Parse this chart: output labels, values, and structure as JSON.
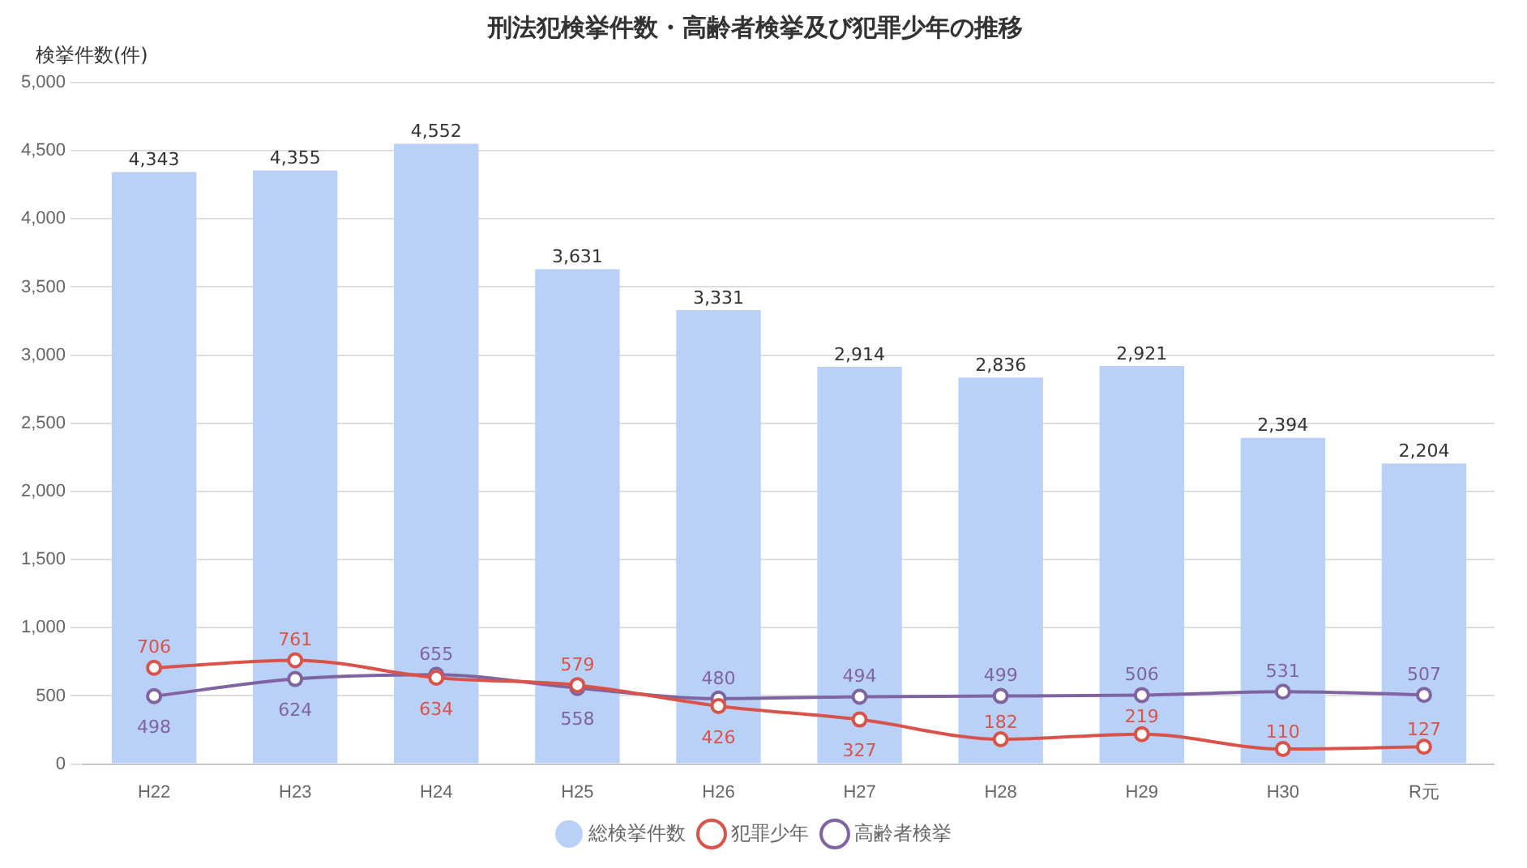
{
  "chart_data": {
    "type": "bar",
    "title": "刑法犯検挙件数・高齢者検挙及び犯罪少年の推移",
    "ylabel": "検挙件数(件)",
    "categories": [
      "H22",
      "H23",
      "H24",
      "H25",
      "H26",
      "H27",
      "H28",
      "H29",
      "H30",
      "R元"
    ],
    "series": [
      {
        "name": "総検挙件数",
        "color": "#b9d1f6",
        "values": [
          4343,
          4355,
          4552,
          3631,
          3331,
          2914,
          2836,
          2921,
          2394,
          2204
        ],
        "value_labels": [
          "4,343",
          "4,355",
          "4,552",
          "3,631",
          "3,331",
          "2,914",
          "2,836",
          "2,921",
          "2,394",
          "2,204"
        ]
      },
      {
        "name": "犯罪少年",
        "type": "line",
        "color": "#d9534a",
        "values": [
          706,
          761,
          634,
          579,
          426,
          327,
          182,
          219,
          110,
          127
        ],
        "value_labels": [
          "706",
          "761",
          "634",
          "579",
          "426",
          "327",
          "182",
          "219",
          "110",
          "127"
        ]
      },
      {
        "name": "高齢者検挙",
        "type": "line",
        "color": "#8064a2",
        "values": [
          498,
          624,
          655,
          558,
          480,
          494,
          499,
          506,
          531,
          507
        ],
        "value_labels": [
          "498",
          "624",
          "655",
          "558",
          "480",
          "494",
          "499",
          "506",
          "531",
          "507"
        ]
      }
    ],
    "ylim": [
      0,
      5000
    ],
    "yticks": [
      0,
      {
        "value": 500,
        "label": "500"
      },
      {
        "value": 1000,
        "label": "1,000"
      },
      {
        "value": 1500,
        "label": "1,500"
      },
      {
        "value": 2000,
        "label": "2,000"
      },
      {
        "value": 2500,
        "label": "2,500"
      },
      {
        "value": 3000,
        "label": "3,000"
      },
      {
        "value": 3500,
        "label": "3,500"
      },
      {
        "value": 4000,
        "label": "4,000"
      },
      {
        "value": 4500,
        "label": "4,500"
      },
      {
        "value": 5000,
        "label": "5,000"
      }
    ],
    "grid": "y",
    "legend": "bottom",
    "marker": "circle",
    "line_style": "solid"
  }
}
